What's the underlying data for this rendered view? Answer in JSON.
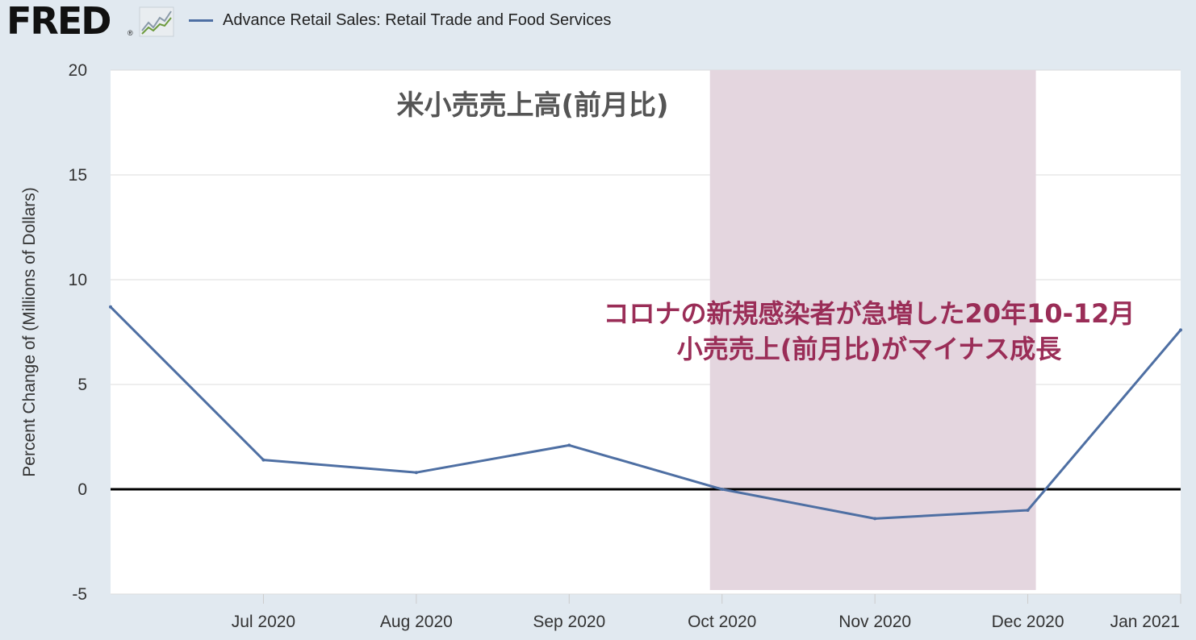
{
  "header": {
    "logo_text": "FRED",
    "logo_reg": "®",
    "legend_label": "Advance Retail Sales: Retail Trade and Food Services"
  },
  "colors": {
    "series": "#4e6fa3",
    "recession_band": "#e4d6df",
    "annotation_red": "#9a2d57",
    "annotation_gray": "#555555",
    "zero_line": "#000000",
    "background": "#e1e9f0",
    "plot_bg": "#ffffff"
  },
  "chart_data": {
    "type": "line",
    "ylabel": "Percent Change of (Millions of Dollars)",
    "ylim": [
      -5,
      20
    ],
    "yticks": [
      20,
      15,
      10,
      5,
      0,
      -5
    ],
    "x_tick_labels": [
      "Jul 2020",
      "Aug 2020",
      "Sep 2020",
      "Oct 2020",
      "Nov 2020",
      "Dec 2020",
      "Jan 2021"
    ],
    "series": [
      {
        "name": "Advance Retail Sales: Retail Trade and Food Services",
        "x": [
          "2020-06",
          "2020-07",
          "2020-08",
          "2020-09",
          "2020-10",
          "2020-11",
          "2020-12",
          "2021-01"
        ],
        "values": [
          8.7,
          1.4,
          0.8,
          2.1,
          0.0,
          -1.4,
          -1.0,
          7.6
        ]
      }
    ],
    "shaded_region": {
      "x_start": "2020-10",
      "x_end": "2020-12"
    },
    "annotations": {
      "title": "米小売売上高(前月比)",
      "note_line1": "コロナの新規感染者が急増した20年10-12月",
      "note_line2": "小売売上(前月比)がマイナス成長"
    },
    "grid": true,
    "legend": "top-left"
  }
}
